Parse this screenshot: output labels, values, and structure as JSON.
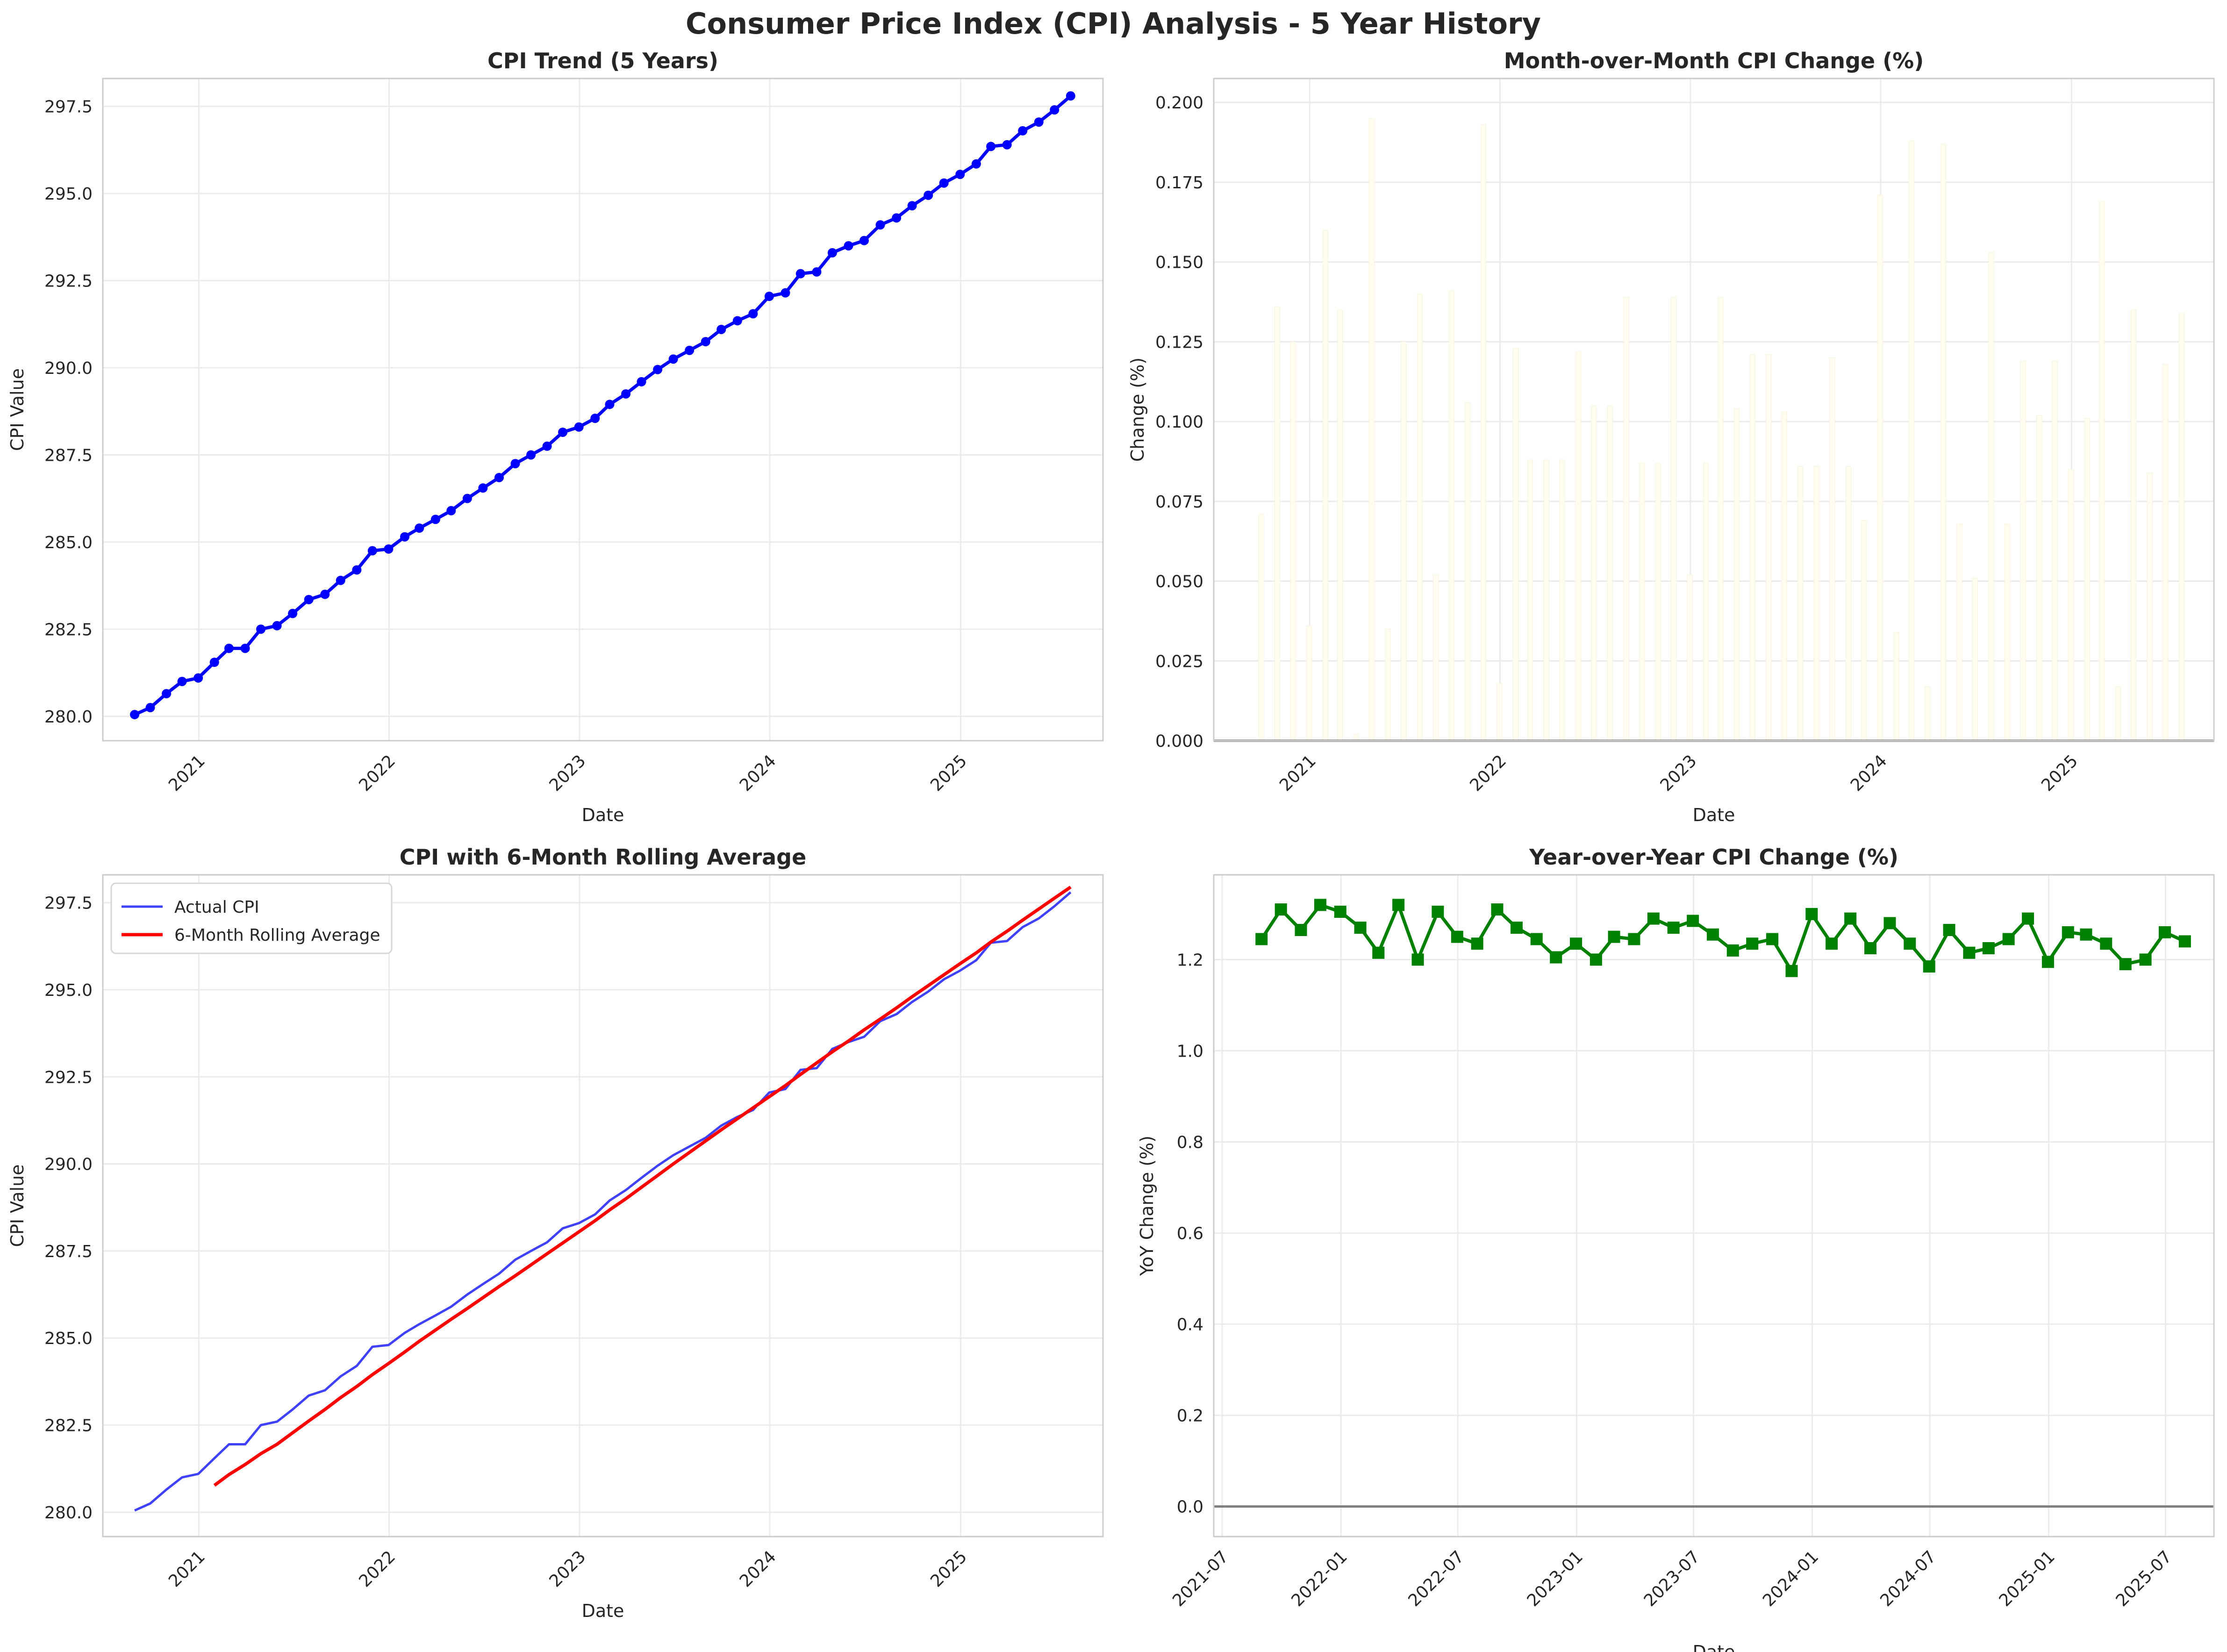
{
  "title": "Consumer Price Index (CPI) Analysis - 5 Year History",
  "chart_data": [
    {
      "id": "trend",
      "type": "line",
      "title": "CPI Trend (5 Years)",
      "xlabel": "Date",
      "ylabel": "CPI Value",
      "xlim": [
        "2020-07-01",
        "2025-10-01"
      ],
      "ylim": [
        279.3,
        298.3
      ],
      "yticks": [
        280.0,
        282.5,
        285.0,
        287.5,
        290.0,
        292.5,
        295.0,
        297.5
      ],
      "ytick_labels": [
        "280.0",
        "282.5",
        "285.0",
        "287.5",
        "290.0",
        "292.5",
        "295.0",
        "297.5"
      ],
      "xticks": [
        "2021-01-01",
        "2022-01-01",
        "2023-01-01",
        "2024-01-01",
        "2025-01-01"
      ],
      "xtick_labels": [
        "2021",
        "2022",
        "2023",
        "2024",
        "2025"
      ],
      "grid": true,
      "series": [
        {
          "color": "#0000ff",
          "marker": "circle",
          "x": [
            "2020-08-31",
            "2020-09-30",
            "2020-10-31",
            "2020-11-30",
            "2020-12-31",
            "2021-01-31",
            "2021-02-28",
            "2021-03-31",
            "2021-04-30",
            "2021-05-31",
            "2021-06-30",
            "2021-07-31",
            "2021-08-31",
            "2021-09-30",
            "2021-10-31",
            "2021-11-30",
            "2021-12-31",
            "2022-01-31",
            "2022-02-28",
            "2022-03-31",
            "2022-04-30",
            "2022-05-31",
            "2022-06-30",
            "2022-07-31",
            "2022-08-31",
            "2022-09-30",
            "2022-10-31",
            "2022-11-30",
            "2022-12-31",
            "2023-01-31",
            "2023-02-28",
            "2023-03-31",
            "2023-04-30",
            "2023-05-31",
            "2023-06-30",
            "2023-07-31",
            "2023-08-31",
            "2023-09-30",
            "2023-10-31",
            "2023-11-30",
            "2023-12-31",
            "2024-01-31",
            "2024-02-29",
            "2024-03-31",
            "2024-04-30",
            "2024-05-31",
            "2024-06-30",
            "2024-07-31",
            "2024-08-31",
            "2024-09-30",
            "2024-10-31",
            "2024-11-30",
            "2024-12-31",
            "2025-01-31",
            "2025-02-28",
            "2025-03-31",
            "2025-04-30",
            "2025-05-31",
            "2025-06-30",
            "2025-07-31"
          ],
          "y": [
            280.05,
            280.25,
            280.65,
            281.0,
            281.1,
            281.55,
            281.95,
            281.95,
            282.5,
            282.6,
            282.95,
            283.35,
            283.5,
            283.9,
            284.2,
            284.75,
            284.8,
            285.15,
            285.4,
            285.65,
            285.9,
            286.25,
            286.55,
            286.85,
            287.25,
            287.5,
            287.75,
            288.15,
            288.3,
            288.55,
            288.95,
            289.25,
            289.6,
            289.95,
            290.25,
            290.5,
            290.75,
            291.1,
            291.35,
            291.55,
            292.05,
            292.15,
            292.7,
            292.75,
            293.3,
            293.5,
            293.65,
            294.1,
            294.3,
            294.65,
            294.95,
            295.3,
            295.55,
            295.85,
            296.35,
            296.4,
            296.8,
            297.05,
            297.4,
            297.8
          ]
        }
      ]
    },
    {
      "id": "mom",
      "type": "bar",
      "title": "Month-over-Month CPI Change (%)",
      "xlabel": "Date",
      "ylabel": "Change (%)",
      "xlim": [
        "2020-07-01",
        "2025-10-01"
      ],
      "ylim": [
        0,
        0.2075
      ],
      "yticks": [
        0.0,
        0.025,
        0.05,
        0.075,
        0.1,
        0.125,
        0.15,
        0.175,
        0.2
      ],
      "ytick_labels": [
        "0.000",
        "0.025",
        "0.050",
        "0.075",
        "0.100",
        "0.125",
        "0.150",
        "0.175",
        "0.200"
      ],
      "xticks": [
        "2021-01-01",
        "2022-01-01",
        "2023-01-01",
        "2024-01-01",
        "2025-01-01"
      ],
      "xtick_labels": [
        "2021",
        "2022",
        "2023",
        "2024",
        "2025"
      ],
      "grid": true,
      "bar_color": "#fffcf0",
      "series": [
        {
          "x": [
            "2020-09-30",
            "2020-10-31",
            "2020-11-30",
            "2020-12-31",
            "2021-01-31",
            "2021-02-28",
            "2021-03-31",
            "2021-04-30",
            "2021-05-31",
            "2021-06-30",
            "2021-07-31",
            "2021-08-31",
            "2021-09-30",
            "2021-10-31",
            "2021-11-30",
            "2021-12-31",
            "2022-01-31",
            "2022-02-28",
            "2022-03-31",
            "2022-04-30",
            "2022-05-31",
            "2022-06-30",
            "2022-07-31",
            "2022-08-31",
            "2022-09-30",
            "2022-10-31",
            "2022-11-30",
            "2022-12-31",
            "2023-01-31",
            "2023-02-28",
            "2023-03-31",
            "2023-04-30",
            "2023-05-31",
            "2023-06-30",
            "2023-07-31",
            "2023-08-31",
            "2023-09-30",
            "2023-10-31",
            "2023-11-30",
            "2023-12-31",
            "2024-01-31",
            "2024-02-29",
            "2024-03-31",
            "2024-04-30",
            "2024-05-31",
            "2024-06-30",
            "2024-07-31",
            "2024-08-31",
            "2024-09-30",
            "2024-10-31",
            "2024-11-30",
            "2024-12-31",
            "2025-01-31",
            "2025-02-28",
            "2025-03-31",
            "2025-04-30",
            "2025-05-31",
            "2025-06-30",
            "2025-07-31"
          ],
          "y": [
            0.071,
            0.136,
            0.125,
            0.036,
            0.16,
            0.135,
            0.002,
            0.195,
            0.035,
            0.125,
            0.14,
            0.052,
            0.141,
            0.106,
            0.193,
            0.018,
            0.123,
            0.088,
            0.088,
            0.088,
            0.122,
            0.105,
            0.105,
            0.139,
            0.087,
            0.087,
            0.139,
            0.052,
            0.087,
            0.139,
            0.104,
            0.121,
            0.121,
            0.103,
            0.086,
            0.086,
            0.12,
            0.086,
            0.069,
            0.171,
            0.034,
            0.188,
            0.017,
            0.187,
            0.068,
            0.051,
            0.153,
            0.068,
            0.119,
            0.102,
            0.119,
            0.085,
            0.101,
            0.169,
            0.017,
            0.135,
            0.084,
            0.118,
            0.134
          ]
        }
      ]
    },
    {
      "id": "rolling",
      "type": "line",
      "title": "CPI with 6-Month Rolling Average",
      "xlabel": "Date",
      "ylabel": "CPI Value",
      "xlim": [
        "2020-07-01",
        "2025-10-01"
      ],
      "ylim": [
        279.3,
        298.3
      ],
      "yticks": [
        280.0,
        282.5,
        285.0,
        287.5,
        290.0,
        292.5,
        295.0,
        297.5
      ],
      "ytick_labels": [
        "280.0",
        "282.5",
        "285.0",
        "287.5",
        "290.0",
        "292.5",
        "295.0",
        "297.5"
      ],
      "xticks": [
        "2021-01-01",
        "2022-01-01",
        "2023-01-01",
        "2024-01-01",
        "2025-01-01"
      ],
      "xtick_labels": [
        "2021",
        "2022",
        "2023",
        "2024",
        "2025"
      ],
      "grid": true,
      "legend": "top-left",
      "series": [
        {
          "name": "Actual CPI",
          "color": "#4040ff",
          "source": "trend"
        },
        {
          "name": "6-Month Rolling Average",
          "color": "#ff0000",
          "x": [
            "2021-01-31",
            "2021-02-28",
            "2021-03-31",
            "2021-04-30",
            "2021-05-31",
            "2021-06-30",
            "2021-07-31",
            "2021-08-31",
            "2021-09-30",
            "2021-10-31",
            "2021-11-30",
            "2021-12-31",
            "2022-01-31",
            "2022-02-28",
            "2022-03-31",
            "2022-04-30",
            "2022-05-31",
            "2022-06-30",
            "2022-07-31",
            "2022-08-31",
            "2022-09-30",
            "2022-10-31",
            "2022-11-30",
            "2022-12-31",
            "2023-01-31",
            "2023-02-28",
            "2023-03-31",
            "2023-04-30",
            "2023-05-31",
            "2023-06-30",
            "2023-07-31",
            "2023-08-31",
            "2023-09-30",
            "2023-10-31",
            "2023-11-30",
            "2023-12-31",
            "2024-01-31",
            "2024-02-29",
            "2024-03-31",
            "2024-04-30",
            "2024-05-31",
            "2024-06-30",
            "2024-07-31",
            "2024-08-31",
            "2024-09-30",
            "2024-10-31",
            "2024-11-30",
            "2024-12-31",
            "2025-01-31",
            "2025-02-28",
            "2025-03-31",
            "2025-04-30",
            "2025-05-31",
            "2025-06-30",
            "2025-07-31"
          ],
          "y": [
            280.77,
            281.08,
            281.37,
            281.68,
            281.95,
            282.28,
            282.62,
            282.95,
            283.29,
            283.61,
            283.95,
            284.27,
            284.6,
            284.91,
            285.23,
            285.54,
            285.85,
            286.16,
            286.48,
            286.79,
            287.1,
            287.42,
            287.73,
            288.05,
            288.37,
            288.68,
            289.0,
            289.33,
            289.67,
            290.0,
            290.33,
            290.66,
            290.98,
            291.3,
            291.61,
            291.93,
            292.25,
            292.57,
            292.9,
            293.22,
            293.53,
            293.85,
            294.16,
            294.48,
            294.8,
            295.12,
            295.43,
            295.75,
            296.06,
            296.37,
            296.68,
            297.0,
            297.32,
            297.63,
            297.95
          ]
        }
      ]
    },
    {
      "id": "yoy",
      "type": "line",
      "title": "Year-over-Year CPI Change (%)",
      "xlabel": "Date",
      "ylabel": "YoY Change (%)",
      "xlim": [
        "2021-06-18",
        "2025-09-14"
      ],
      "ylim": [
        -0.066,
        1.386
      ],
      "yticks": [
        0.0,
        0.2,
        0.4,
        0.6,
        0.8,
        1.0,
        1.2
      ],
      "ytick_labels": [
        "0.0",
        "0.2",
        "0.4",
        "0.6",
        "0.8",
        "1.0",
        "1.2"
      ],
      "xticks": [
        "2021-07-01",
        "2022-01-01",
        "2022-07-01",
        "2023-01-01",
        "2023-07-01",
        "2024-01-01",
        "2024-07-01",
        "2025-01-01",
        "2025-07-01"
      ],
      "xtick_labels": [
        "2021-07",
        "2022-01",
        "2022-07",
        "2023-01",
        "2023-07",
        "2024-01",
        "2024-07",
        "2025-01",
        "2025-07"
      ],
      "grid": true,
      "series": [
        {
          "color": "#008000",
          "marker": "square",
          "x": [
            "2021-08-31",
            "2021-09-30",
            "2021-10-31",
            "2021-11-30",
            "2021-12-31",
            "2022-01-31",
            "2022-02-28",
            "2022-03-31",
            "2022-04-30",
            "2022-05-31",
            "2022-06-30",
            "2022-07-31",
            "2022-08-31",
            "2022-09-30",
            "2022-10-31",
            "2022-11-30",
            "2022-12-31",
            "2023-01-31",
            "2023-02-28",
            "2023-03-31",
            "2023-04-30",
            "2023-05-31",
            "2023-06-30",
            "2023-07-31",
            "2023-08-31",
            "2023-09-30",
            "2023-10-31",
            "2023-11-30",
            "2023-12-31",
            "2024-01-31",
            "2024-02-29",
            "2024-03-31",
            "2024-04-30",
            "2024-05-31",
            "2024-06-30",
            "2024-07-31",
            "2024-08-31",
            "2024-09-30",
            "2024-10-31",
            "2024-11-30",
            "2024-12-31",
            "2025-01-31",
            "2025-02-28",
            "2025-03-31",
            "2025-04-30",
            "2025-05-31",
            "2025-06-30",
            "2025-07-31"
          ],
          "y": [
            1.245,
            1.31,
            1.265,
            1.32,
            1.305,
            1.27,
            1.215,
            1.32,
            1.2,
            1.305,
            1.25,
            1.235,
            1.31,
            1.27,
            1.245,
            1.205,
            1.235,
            1.2,
            1.25,
            1.245,
            1.29,
            1.27,
            1.285,
            1.255,
            1.22,
            1.235,
            1.245,
            1.175,
            1.3,
            1.235,
            1.29,
            1.225,
            1.28,
            1.235,
            1.185,
            1.265,
            1.215,
            1.225,
            1.245,
            1.29,
            1.195,
            1.26,
            1.255,
            1.235,
            1.19,
            1.2,
            1.26,
            1.24
          ]
        }
      ]
    }
  ]
}
